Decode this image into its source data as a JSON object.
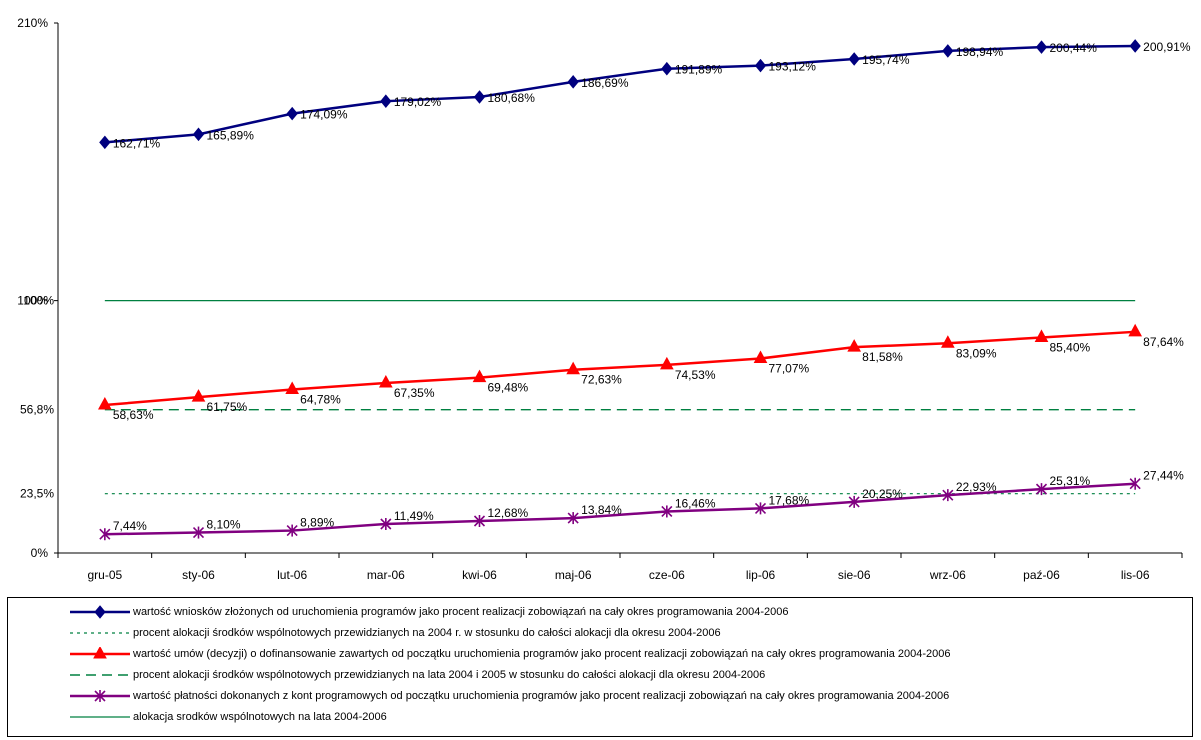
{
  "chart_data": {
    "type": "line",
    "categories": [
      "gru-05",
      "sty-06",
      "lut-06",
      "mar-06",
      "kwi-06",
      "maj-06",
      "cze-06",
      "lip-06",
      "sie-06",
      "wrz-06",
      "paź-06",
      "lis-06"
    ],
    "y_axis": {
      "min": 0,
      "max": 210,
      "ticks": [
        0,
        100,
        210
      ],
      "tick_labels": [
        "0%",
        "100%",
        "210%"
      ]
    },
    "grid": false,
    "legend_placement": "bottom",
    "series": [
      {
        "name": "wartość  wniosków złożonych od uruchomienia programów jako procent realizacji zobowiązań na cały okres programowania 2004-2006",
        "values": [
          162.71,
          165.89,
          174.09,
          179.02,
          180.68,
          186.69,
          191.89,
          193.12,
          195.74,
          198.94,
          200.44,
          200.91
        ],
        "labels": [
          "162,71%",
          "165,89%",
          "174,09%",
          "179,02%",
          "180,68%",
          "186,69%",
          "191,89%",
          "193,12%",
          "195,74%",
          "198,94%",
          "200,44%",
          "200,91%"
        ],
        "color": "#00007f",
        "marker": "diamond",
        "line_style": "solid"
      },
      {
        "name": "procent alokacji środków wspólnotowych przewidzianych na 2004 r. w stosunku do całości alokacji dla okresu 2004-2006",
        "values": [
          23.5,
          23.5,
          23.5,
          23.5,
          23.5,
          23.5,
          23.5,
          23.5,
          23.5,
          23.5,
          23.5,
          23.5
        ],
        "reference_label": "23,5%",
        "color": "#008040",
        "marker": "none",
        "line_style": "dotted"
      },
      {
        "name": "wartość  umów (decyzji) o dofinansowanie zawartych od początku uruchomienia programów jako procent realizacji zobowiązań na cały okres programowania 2004-2006",
        "values": [
          58.63,
          61.75,
          64.78,
          67.35,
          69.48,
          72.63,
          74.53,
          77.07,
          81.58,
          83.09,
          85.4,
          87.64
        ],
        "labels": [
          "58,63%",
          "61,75%",
          "64,78%",
          "67,35%",
          "69,48%",
          "72,63%",
          "74,53%",
          "77,07%",
          "81,58%",
          "83,09%",
          "85,40%",
          "87,64%"
        ],
        "color": "#ff0000",
        "marker": "triangle",
        "line_style": "solid"
      },
      {
        "name": "procent alokacji środków wspólnotowych przewidzianych na lata 2004 i 2005 w stosunku do całości alokacji dla okresu 2004-2006",
        "values": [
          56.8,
          56.8,
          56.8,
          56.8,
          56.8,
          56.8,
          56.8,
          56.8,
          56.8,
          56.8,
          56.8,
          56.8
        ],
        "reference_label": "56,8%",
        "color": "#008040",
        "marker": "none",
        "line_style": "dashed"
      },
      {
        "name": "wartość  płatności dokonanych z kont programowych od początku uruchomienia programów jako procent realizacji zobowiązań na cały okres programowania 2004-2006",
        "values": [
          7.44,
          8.1,
          8.89,
          11.49,
          12.68,
          13.84,
          16.46,
          17.68,
          20.25,
          22.93,
          25.31,
          27.44
        ],
        "labels": [
          "7,44%",
          "8,10%",
          "8,89%",
          "11,49%",
          "12,68%",
          "13,84%",
          "16,46%",
          "17,68%",
          "20,25%",
          "22,93%",
          "25,31%",
          "27,44%"
        ],
        "color": "#800080",
        "marker": "asterisk",
        "line_style": "solid"
      },
      {
        "name": "alokacja srodków wspólnotowych na lata 2004-2006",
        "values": [
          100,
          100,
          100,
          100,
          100,
          100,
          100,
          100,
          100,
          100,
          100,
          100
        ],
        "reference_label": "100%",
        "color": "#008040",
        "marker": "none",
        "line_style": "solid_thin"
      }
    ]
  }
}
